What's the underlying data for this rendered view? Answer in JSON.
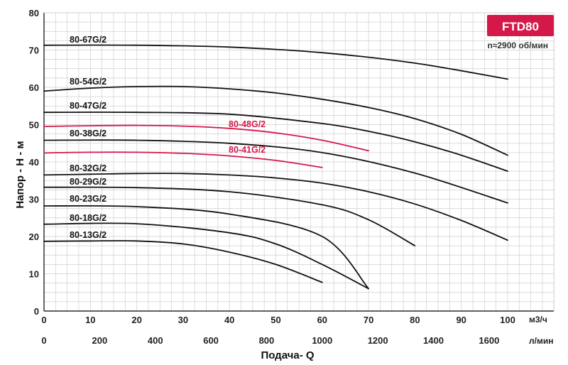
{
  "badge": {
    "text": "FTD80",
    "color": "#d4184a"
  },
  "speed_note": "n≈2900 об/мин",
  "chart_data": {
    "type": "line",
    "ylabel": "Напор - Н - м",
    "xlabel": "Подача- Q",
    "x_unit_top": "м3/ч",
    "x_unit_bottom": "л/мин",
    "xlim": [
      0,
      110
    ],
    "ylim": [
      0,
      80
    ],
    "x_ticks_top": [
      "0",
      "10",
      "20",
      "30",
      "40",
      "50",
      "60",
      "70",
      "80",
      "90",
      "100"
    ],
    "x_ticks_bottom": [
      "0",
      "200",
      "400",
      "600",
      "800",
      "1000",
      "1200",
      "1400",
      "1600"
    ],
    "x_ticks_bottom_lpm": [
      0,
      200,
      400,
      600,
      800,
      1000,
      1200,
      1400,
      1600
    ],
    "y_ticks": [
      "0",
      "10",
      "20",
      "30",
      "40",
      "50",
      "60",
      "70",
      "80"
    ],
    "grid": true,
    "colors": {
      "black": "#111111",
      "red": "#d4184a"
    },
    "series": [
      {
        "name": "80-67G/2",
        "color": "black",
        "x": [
          0,
          20,
          40,
          60,
          80,
          100
        ],
        "y": [
          71.3,
          71.3,
          70.8,
          69.3,
          66.5,
          62.2
        ]
      },
      {
        "name": "80-54G/2",
        "color": "black",
        "x": [
          0,
          10,
          20,
          30,
          40,
          50,
          60,
          70,
          80,
          90,
          100
        ],
        "y": [
          59,
          59.8,
          60.2,
          60.2,
          59.6,
          58.5,
          56.8,
          54.6,
          51.6,
          47.4,
          41.8
        ]
      },
      {
        "name": "80-47G/2",
        "color": "black",
        "x": [
          0,
          20,
          40,
          60,
          70,
          80,
          90,
          100
        ],
        "y": [
          53.3,
          53.3,
          52.8,
          50.3,
          48.2,
          45.4,
          41.8,
          37.5
        ]
      },
      {
        "name": "80-48G/2",
        "color": "red",
        "x": [
          0,
          10,
          20,
          30,
          40,
          50,
          60,
          70
        ],
        "y": [
          49.5,
          49.7,
          49.8,
          49.6,
          49,
          47.8,
          45.8,
          43
        ]
      },
      {
        "name": "80-38G/2",
        "color": "black",
        "x": [
          0,
          20,
          40,
          60,
          80,
          100
        ],
        "y": [
          45.8,
          45.8,
          45,
          42.5,
          37,
          29
        ]
      },
      {
        "name": "80-41G/2",
        "color": "red",
        "x": [
          0,
          10,
          20,
          30,
          40,
          50,
          60
        ],
        "y": [
          42.4,
          42.6,
          42.6,
          42.3,
          41.6,
          40.4,
          38.5
        ]
      },
      {
        "name": "80-32G/2",
        "color": "black",
        "x": [
          0,
          10,
          20,
          30,
          40,
          50,
          60,
          70,
          80,
          90,
          100
        ],
        "y": [
          36.5,
          36.7,
          36.9,
          36.9,
          36.5,
          35.7,
          34.3,
          32,
          28.7,
          24.3,
          19
        ]
      },
      {
        "name": "80-29G/2",
        "color": "black",
        "x": [
          0,
          20,
          40,
          60,
          70,
          80
        ],
        "y": [
          33.2,
          33.1,
          32,
          28.5,
          24.5,
          17.5
        ]
      },
      {
        "name": "80-23G/2",
        "color": "black",
        "x": [
          0,
          20,
          40,
          60,
          70
        ],
        "y": [
          28.2,
          28,
          26,
          20,
          6
        ]
      },
      {
        "name": "80-18G/2",
        "color": "black",
        "x": [
          0,
          20,
          40,
          50,
          60,
          70
        ],
        "y": [
          23.3,
          23.4,
          21,
          18,
          12.5,
          6
        ]
      },
      {
        "name": "80-13G/2",
        "color": "black",
        "x": [
          0,
          10,
          20,
          30,
          40,
          50,
          60
        ],
        "y": [
          18.7,
          18.8,
          18.8,
          18,
          15.8,
          12.5,
          7.7
        ]
      }
    ]
  }
}
